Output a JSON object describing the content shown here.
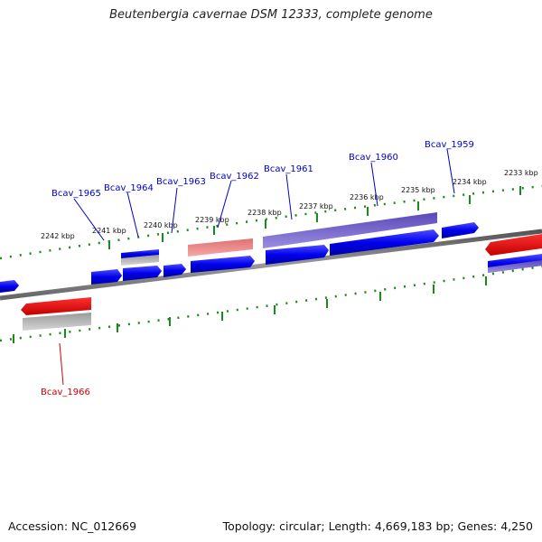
{
  "title": "Beutenbergia cavernae DSM 12333, complete genome",
  "footer": {
    "accession": "Accession: NC_012669",
    "summary": "Topology: circular; Length: 4,669,183 bp; Genes: 4,250"
  },
  "colors": {
    "forward_gene": "#0000ee",
    "reverse_gene": "#ee0000",
    "backbone": "#808080",
    "ticks": "#1a8a1a",
    "forward_label": "#0000cc",
    "reverse_label": "#cc0000"
  },
  "ruler": {
    "labels": [
      "2242 kbp",
      "2241 kbp",
      "2240 kbp",
      "2239 kbp",
      "2238 kbp",
      "2237 kbp",
      "2236 kbp",
      "2235 kbp",
      "2234 kbp",
      "2233 kbp"
    ]
  },
  "gene_labels": [
    {
      "text": "Bcav_1965",
      "strand": "forward"
    },
    {
      "text": "Bcav_1964",
      "strand": "forward"
    },
    {
      "text": "Bcav_1963",
      "strand": "forward"
    },
    {
      "text": "Bcav_1962",
      "strand": "forward"
    },
    {
      "text": "Bcav_1961",
      "strand": "forward"
    },
    {
      "text": "Bcav_1960",
      "strand": "forward"
    },
    {
      "text": "Bcav_1959",
      "strand": "forward"
    },
    {
      "text": "Bcav_1966",
      "strand": "reverse"
    }
  ]
}
